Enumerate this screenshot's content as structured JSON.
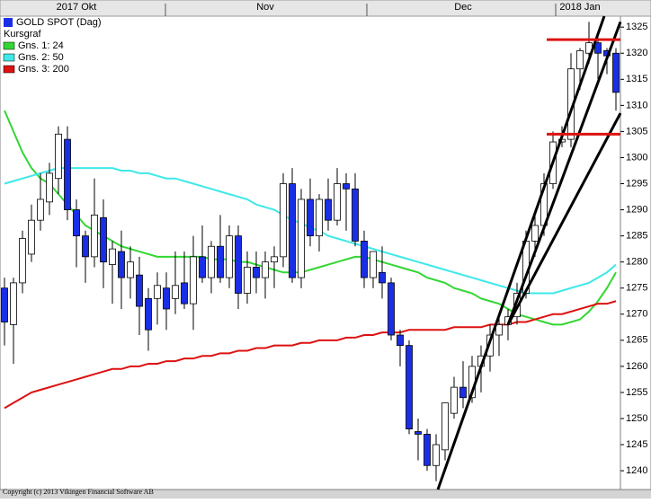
{
  "chart_data": {
    "type": "candlestick",
    "copyright": "Copyright (c) 2013 Vikingen Financial Software AB",
    "legend_note": "Kursgraf",
    "categories": [
      null,
      null,
      null,
      null,
      null,
      null,
      null,
      null,
      "2017 Okt",
      null,
      null,
      null,
      null,
      null,
      null,
      null,
      null,
      null,
      null,
      null,
      null,
      null,
      null,
      null,
      null,
      null,
      null,
      null,
      null,
      "Nov",
      null,
      null,
      null,
      null,
      null,
      null,
      null,
      null,
      null,
      null,
      null,
      null,
      null,
      null,
      null,
      null,
      null,
      null,
      null,
      null,
      null,
      "Dec",
      null,
      null,
      null,
      null,
      null,
      null,
      null,
      null,
      null,
      null,
      null,
      null,
      "2018 Jan",
      null,
      null,
      null,
      null
    ],
    "xticks": [
      17.9,
      40.3,
      61.3
    ],
    "ylim": [
      1236.4,
      1327.1
    ],
    "yticks": [
      1240,
      1245,
      1250,
      1255,
      1260,
      1265,
      1270,
      1275,
      1280,
      1285,
      1290,
      1295,
      1300,
      1305,
      1310,
      1315,
      1320,
      1325
    ],
    "candles": {
      "name": "GOLD SPOT (Dag)",
      "color": "#1a2ee6",
      "up_color": "#ffffff",
      "open": [
        1275,
        1268,
        1276,
        1281.5,
        1288,
        1291.5,
        1296,
        1303.5,
        1290,
        1285,
        1281,
        1288.5,
        1279.5,
        1282,
        1277,
        1277.5,
        1273,
        1273,
        1275,
        1273,
        1276,
        1272,
        1281,
        1277,
        1283,
        1277,
        1285,
        1274,
        1279,
        1277,
        1280,
        1281,
        1295,
        1277,
        1292,
        1285,
        1292,
        1288,
        1295,
        1294,
        1284,
        1277,
        1278,
        1276,
        1266,
        1264,
        1247.5,
        1247,
        1241,
        1244,
        1251,
        1256,
        1254,
        1260,
        1262,
        1266,
        1268,
        1269.5,
        1274,
        1284,
        1287,
        1295,
        1303,
        1303.5,
        1317,
        1320,
        1322,
        1320.5,
        1320
      ],
      "high": [
        1277,
        1277,
        1286,
        1291,
        1297,
        1299,
        1306,
        1306,
        1292,
        1286,
        1296,
        1292,
        1284,
        1286,
        1283,
        1281,
        1275,
        1278,
        1278,
        1282,
        1282,
        1285,
        1287,
        1284,
        1289,
        1287,
        1287,
        1282,
        1282,
        1282,
        1283,
        1297,
        1298,
        1294,
        1296,
        1293,
        1296,
        1298,
        1297,
        1297,
        1286,
        1282,
        1283,
        1277,
        1267,
        1265,
        1250,
        1248,
        1247,
        1253,
        1258,
        1261,
        1262,
        1264,
        1268,
        1270,
        1271,
        1276,
        1286,
        1289,
        1297,
        1305,
        1306,
        1320,
        1321,
        1326,
        1323,
        1321,
        1321
      ],
      "low": [
        1264,
        1260.5,
        1274,
        1280,
        1286,
        1289,
        1293,
        1288,
        1279,
        1276,
        1279,
        1275,
        1272,
        1271,
        1273,
        1266,
        1263,
        1268,
        1267,
        1270,
        1271,
        1267,
        1276,
        1274,
        1276,
        1275,
        1271,
        1272,
        1274,
        1273,
        1275,
        1279,
        1276,
        1275,
        1283,
        1282,
        1286,
        1287,
        1286,
        1283,
        1275,
        1275,
        1273,
        1265,
        1260,
        1247,
        1242,
        1240,
        1238,
        1242,
        1250,
        1252,
        1253,
        1255,
        1259,
        1262,
        1265,
        1268,
        1273,
        1281,
        1285,
        1294,
        1302,
        1302,
        1313,
        1318,
        1315,
        1316,
        1309
      ],
      "close": [
        1268.5,
        1276,
        1284.5,
        1288,
        1292,
        1297,
        1304.5,
        1290,
        1285,
        1281,
        1289,
        1280,
        1282.5,
        1277,
        1280,
        1271.5,
        1267,
        1275.5,
        1271,
        1275.5,
        1272,
        1281,
        1277,
        1283,
        1277,
        1285,
        1274,
        1279,
        1277,
        1280,
        1281,
        1295,
        1277,
        1292,
        1285,
        1292,
        1288,
        1295,
        1294,
        1284,
        1277,
        1282,
        1276,
        1266,
        1264,
        1248,
        1247,
        1241,
        1245,
        1253,
        1256,
        1254,
        1260,
        1262,
        1266,
        1268,
        1269.5,
        1274,
        1284,
        1287,
        1295,
        1303,
        1303.5,
        1317,
        1320.5,
        1322,
        1320,
        1319.5,
        1312.5
      ]
    },
    "series": [
      {
        "name": "Gns. 1: 24",
        "color": "#33d633",
        "values": [
          1309,
          1305,
          1301,
          1298,
          1296,
          1295,
          1293,
          1291,
          1289,
          1287,
          1286,
          1285,
          1284,
          1283,
          1282.5,
          1282,
          1281.5,
          1281,
          1281,
          1281,
          1281,
          1281,
          1281,
          1280.5,
          1280.5,
          1280.5,
          1280,
          1280,
          1279.5,
          1279,
          1278.5,
          1278,
          1278,
          1278,
          1278.5,
          1279,
          1279.5,
          1280,
          1280.5,
          1281,
          1281,
          1280.5,
          1280,
          1279.5,
          1279,
          1278.5,
          1278,
          1277,
          1276.5,
          1276,
          1275,
          1274.5,
          1274,
          1273,
          1272.5,
          1272,
          1271,
          1270,
          1269.5,
          1269,
          1268.5,
          1268,
          1268,
          1268.5,
          1269,
          1270.5,
          1272.5,
          1275,
          1278
        ]
      },
      {
        "name": "Gns. 2: 50",
        "color": "#3ee8e8",
        "values": [
          1295,
          1295.5,
          1296,
          1296.5,
          1297,
          1297.5,
          1298,
          1298,
          1298,
          1298,
          1298,
          1298,
          1298,
          1297.5,
          1297.5,
          1297,
          1297,
          1296.5,
          1296,
          1296,
          1295.5,
          1295,
          1294.5,
          1294,
          1293.5,
          1293,
          1292.5,
          1292,
          1291,
          1290.5,
          1290,
          1289,
          1288,
          1287.5,
          1286.5,
          1286,
          1285,
          1284.5,
          1284,
          1283.5,
          1283,
          1282.5,
          1282,
          1281.5,
          1281,
          1280.5,
          1280,
          1279.5,
          1279,
          1278.5,
          1278,
          1277.5,
          1277,
          1276.5,
          1276,
          1275.5,
          1275,
          1274.5,
          1274,
          1274,
          1274,
          1274,
          1274.5,
          1275,
          1275.5,
          1276,
          1277,
          1278,
          1279.5
        ]
      },
      {
        "name": "Gns. 3: 200",
        "color": "#dd1111",
        "values": [
          1252,
          1253,
          1254,
          1255,
          1255.5,
          1256,
          1256.5,
          1257,
          1257.5,
          1258,
          1258.5,
          1259,
          1259.5,
          1259.5,
          1260,
          1260,
          1260.5,
          1260.5,
          1261,
          1261,
          1261.5,
          1261.5,
          1262,
          1262,
          1262.5,
          1262.5,
          1263,
          1263,
          1263.5,
          1263.5,
          1264,
          1264,
          1264,
          1264.5,
          1264.5,
          1265,
          1265,
          1265,
          1265.5,
          1265.5,
          1266,
          1266,
          1266.5,
          1266.5,
          1266.5,
          1267,
          1267,
          1267,
          1267,
          1267,
          1267.5,
          1267.5,
          1267.5,
          1267.5,
          1268,
          1268,
          1268,
          1268.5,
          1268.5,
          1269,
          1269.5,
          1270,
          1270,
          1270.5,
          1271,
          1271.5,
          1272,
          1272,
          1272.5
        ]
      }
    ],
    "trendlines": [
      {
        "color": "#000000",
        "x": [
          48.2,
          66.7
        ],
        "y": [
          1236.4,
          1327.1
        ]
      },
      {
        "color": "#000000",
        "x": [
          56,
          68.5
        ],
        "y": [
          1268,
          1326
        ]
      },
      {
        "color": "#000000",
        "x": [
          56,
          68.5
        ],
        "y": [
          1268,
          1308.5
        ]
      }
    ],
    "levels": [
      {
        "color": "#dd1111",
        "value": 1322.6,
        "from": 60.3
      },
      {
        "color": "#dd1111",
        "value": 1304.5,
        "from": 60.3
      }
    ]
  }
}
